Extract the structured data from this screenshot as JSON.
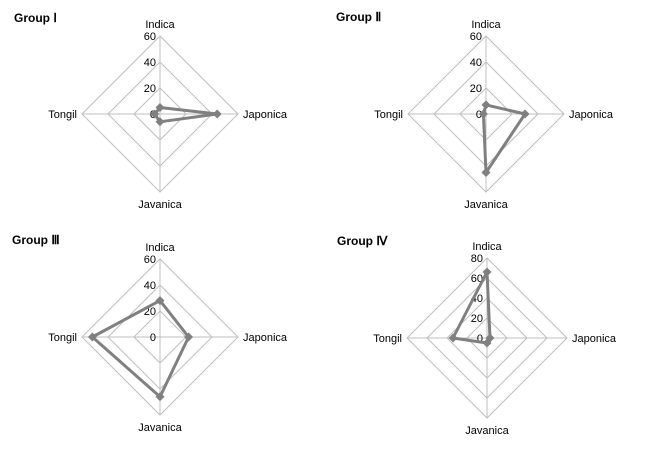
{
  "chart_data": [
    {
      "type": "radar",
      "title": "Group  Ⅰ",
      "axes": [
        "Indica",
        "Japonica",
        "Javanica",
        "Tongil"
      ],
      "ticks": [
        0,
        20,
        40,
        60
      ],
      "rlim": [
        0,
        60
      ],
      "legend": "none",
      "grid": true,
      "series": [
        {
          "values": [
            5,
            44,
            6,
            4
          ],
          "color": "#808080"
        }
      ]
    },
    {
      "type": "radar",
      "title": "Group  Ⅱ",
      "axes": [
        "Indica",
        "Japonica",
        "Javanica",
        "Tongil"
      ],
      "ticks": [
        0,
        20,
        40,
        60
      ],
      "rlim": [
        0,
        60
      ],
      "legend": "none",
      "grid": true,
      "series": [
        {
          "values": [
            7,
            30,
            45,
            2
          ],
          "color": "#808080"
        }
      ]
    },
    {
      "type": "radar",
      "title": "Group  Ⅲ",
      "axes": [
        "Indica",
        "Japonica",
        "Javanica",
        "Tongil"
      ],
      "ticks": [
        0,
        20,
        40,
        60
      ],
      "rlim": [
        0,
        60
      ],
      "legend": "none",
      "grid": true,
      "series": [
        {
          "values": [
            28,
            22,
            46,
            52
          ],
          "color": "#808080"
        }
      ]
    },
    {
      "type": "radar",
      "title": "Group  Ⅳ",
      "axes": [
        "Indica",
        "Japonica",
        "Javanica",
        "Tongil"
      ],
      "ticks": [
        0,
        20,
        40,
        60,
        80
      ],
      "rlim": [
        0,
        80
      ],
      "legend": "none",
      "grid": true,
      "series": [
        {
          "values": [
            66,
            3,
            5,
            34
          ],
          "color": "#808080"
        }
      ]
    }
  ]
}
